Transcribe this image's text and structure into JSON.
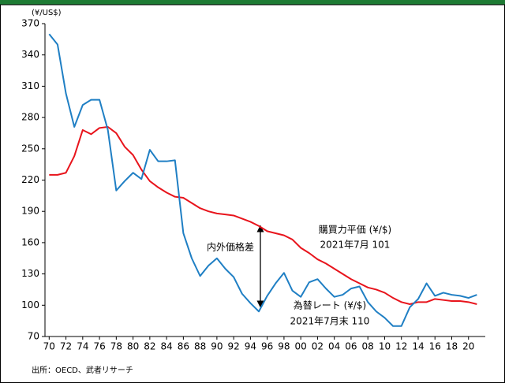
{
  "chart_data": {
    "type": "line",
    "unit_label": "(¥/US$)",
    "source": "出所：OECD、武者リサーチ",
    "annotations": [
      "購買力平価 (¥/$)",
      "2021年7月 101",
      "為替レート (¥/$)",
      "2021年7月末 110",
      "内外価格差"
    ],
    "x": [
      1970,
      1971,
      1972,
      1973,
      1974,
      1975,
      1976,
      1977,
      1978,
      1979,
      1980,
      1981,
      1982,
      1983,
      1984,
      1985,
      1986,
      1987,
      1988,
      1989,
      1990,
      1991,
      1992,
      1993,
      1994,
      1995,
      1996,
      1997,
      1998,
      1999,
      2000,
      2001,
      2002,
      2003,
      2004,
      2005,
      2006,
      2007,
      2008,
      2009,
      2010,
      2011,
      2012,
      2013,
      2014,
      2015,
      2016,
      2017,
      2018,
      2019,
      2020,
      2021
    ],
    "series": [
      {
        "name": "為替レート",
        "color": "#1f7fc4",
        "values": [
          360,
          350,
          303,
          271,
          292,
          297,
          297,
          268,
          210,
          219,
          227,
          221,
          249,
          238,
          238,
          239,
          169,
          145,
          128,
          138,
          145,
          135,
          127,
          111,
          102,
          94,
          109,
          121,
          131,
          114,
          108,
          122,
          125,
          116,
          108,
          110,
          116,
          118,
          103,
          94,
          88,
          80,
          80,
          98,
          106,
          121,
          109,
          112,
          110,
          109,
          107,
          110
        ]
      },
      {
        "name": "購買力平価",
        "color": "#e8141c",
        "values": [
          225,
          225,
          227,
          243,
          268,
          264,
          270,
          271,
          265,
          252,
          244,
          230,
          219,
          213,
          208,
          204,
          203,
          198,
          193,
          190,
          188,
          187,
          186,
          183,
          180,
          176,
          171,
          169,
          167,
          163,
          155,
          150,
          144,
          140,
          135,
          130,
          125,
          121,
          117,
          115,
          112,
          107,
          103,
          101,
          103,
          103,
          106,
          105,
          104,
          104,
          103,
          101
        ]
      }
    ],
    "xlim": [
      1969.5,
      2022
    ],
    "ylim": [
      70,
      370
    ],
    "yticks": [
      70,
      100,
      130,
      160,
      190,
      220,
      250,
      280,
      310,
      340,
      370
    ],
    "xticks": [
      {
        "value": 1970,
        "label": "70"
      },
      {
        "value": 1972,
        "label": "72"
      },
      {
        "value": 1974,
        "label": "74"
      },
      {
        "value": 1976,
        "label": "76"
      },
      {
        "value": 1978,
        "label": "78"
      },
      {
        "value": 1980,
        "label": "80"
      },
      {
        "value": 1982,
        "label": "82"
      },
      {
        "value": 1984,
        "label": "84"
      },
      {
        "value": 1986,
        "label": "86"
      },
      {
        "value": 1988,
        "label": "88"
      },
      {
        "value": 1990,
        "label": "90"
      },
      {
        "value": 1992,
        "label": "92"
      },
      {
        "value": 1994,
        "label": "94"
      },
      {
        "value": 1996,
        "label": "96"
      },
      {
        "value": 1998,
        "label": "98"
      },
      {
        "value": 2000,
        "label": "00"
      },
      {
        "value": 2002,
        "label": "02"
      },
      {
        "value": 2004,
        "label": "04"
      },
      {
        "value": 2006,
        "label": "06"
      },
      {
        "value": 2008,
        "label": "08"
      },
      {
        "value": 2010,
        "label": "10"
      },
      {
        "value": 2012,
        "label": "12"
      },
      {
        "value": 2014,
        "label": "14"
      },
      {
        "value": 2016,
        "label": "16"
      },
      {
        "value": 2018,
        "label": "18"
      },
      {
        "value": 2020,
        "label": "20"
      }
    ]
  }
}
